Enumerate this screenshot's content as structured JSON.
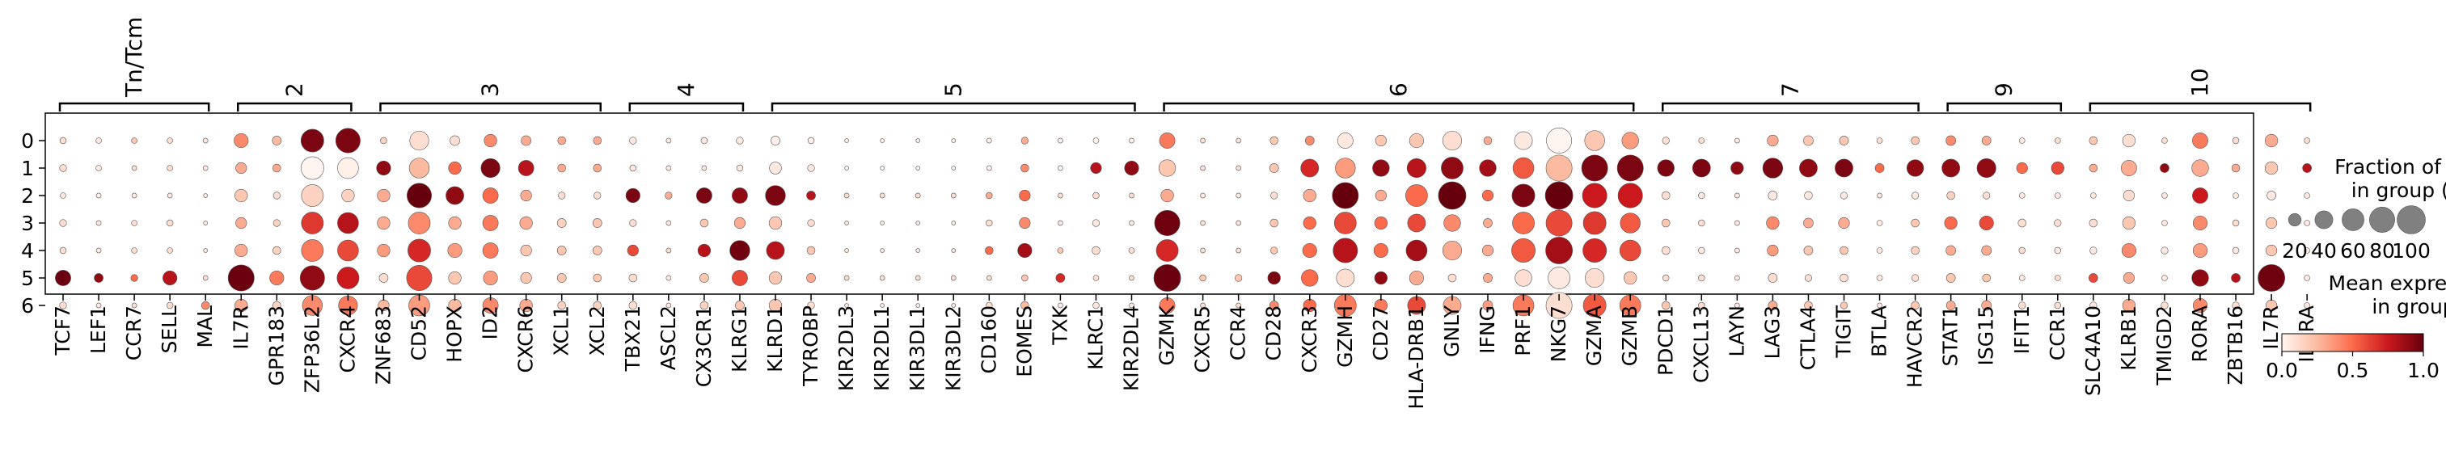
{
  "chart_data": {
    "type": "dotplot",
    "groups": [
      "0",
      "1",
      "2",
      "3",
      "4",
      "5",
      "6"
    ],
    "genes": [
      "TCF7",
      "LEF1",
      "CCR7",
      "SELL",
      "MAL",
      "IL7R",
      "GPR183",
      "ZFP36L2",
      "CXCR4",
      "ZNF683",
      "CD52",
      "HOPX",
      "ID2",
      "CXCR6",
      "XCL1",
      "XCL2",
      "TBX21",
      "ASCL2",
      "CX3CR1",
      "KLRG1",
      "KLRD1",
      "TYROBP",
      "KIR2DL3",
      "KIR2DL1",
      "KIR3DL1",
      "KIR3DL2",
      "CD160",
      "EOMES",
      "TXK",
      "KLRC1",
      "KIR2DL4",
      "GZMK",
      "CXCR5",
      "CCR4",
      "CD28",
      "CXCR3",
      "GZMH",
      "CD27",
      "HLA-DRB1",
      "GNLY",
      "IFNG",
      "PRF1",
      "NKG7",
      "GZMA",
      "GZMB",
      "PDCD1",
      "CXCL13",
      "LAYN",
      "LAG3",
      "CTLA4",
      "TIGIT",
      "BTLA",
      "HAVCR2",
      "STAT1",
      "ISG15",
      "IFIT1",
      "CCR1",
      "SLC4A10",
      "KLRB1",
      "TMIGD2",
      "RORA",
      "ZBTB16",
      "IL7R",
      "IL2RA"
    ],
    "gene_groups": [
      {
        "label": "Tn/Tcm",
        "start": 0,
        "end": 4
      },
      {
        "label": "2",
        "start": 5,
        "end": 8
      },
      {
        "label": "3",
        "start": 9,
        "end": 15
      },
      {
        "label": "4",
        "start": 16,
        "end": 19
      },
      {
        "label": "5",
        "start": 20,
        "end": 30
      },
      {
        "label": "6",
        "start": 31,
        "end": 44
      },
      {
        "label": "7",
        "start": 45,
        "end": 52
      },
      {
        "label": "9",
        "start": 53,
        "end": 56
      },
      {
        "label": "10",
        "start": 57,
        "end": 63
      }
    ],
    "fraction": [
      [
        5,
        4,
        4,
        4,
        3,
        25,
        10,
        65,
        75,
        5,
        45,
        12,
        20,
        12,
        8,
        8,
        6,
        3,
        5,
        6,
        10,
        5,
        2,
        2,
        2,
        2,
        3,
        6,
        3,
        4,
        3,
        30,
        3,
        3,
        8,
        10,
        30,
        15,
        25,
        45,
        8,
        40,
        80,
        50,
        35,
        6,
        4,
        3,
        15,
        12,
        10,
        4,
        8,
        12,
        10,
        4,
        4,
        8,
        20,
        4,
        30,
        5,
        20,
        4
      ],
      [
        6,
        4,
        3,
        4,
        3,
        15,
        8,
        65,
        55,
        25,
        50,
        20,
        45,
        30,
        8,
        8,
        5,
        3,
        3,
        5,
        18,
        6,
        2,
        2,
        2,
        2,
        3,
        8,
        3,
        15,
        25,
        35,
        3,
        3,
        10,
        40,
        50,
        35,
        45,
        60,
        35,
        55,
        85,
        85,
        85,
        35,
        40,
        20,
        50,
        40,
        40,
        10,
        35,
        40,
        45,
        15,
        20,
        8,
        30,
        10,
        35,
        8,
        20,
        10
      ],
      [
        4,
        3,
        3,
        3,
        2,
        20,
        6,
        60,
        20,
        20,
        75,
        40,
        30,
        15,
        6,
        6,
        25,
        6,
        30,
        30,
        50,
        10,
        3,
        3,
        3,
        3,
        5,
        15,
        3,
        5,
        3,
        20,
        3,
        3,
        6,
        20,
        85,
        15,
        60,
        95,
        15,
        65,
        95,
        75,
        75,
        8,
        5,
        3,
        10,
        8,
        6,
        3,
        6,
        8,
        6,
        4,
        4,
        4,
        15,
        4,
        30,
        4,
        10,
        4
      ],
      [
        6,
        3,
        4,
        5,
        2,
        15,
        6,
        60,
        55,
        20,
        60,
        20,
        30,
        20,
        10,
        10,
        6,
        3,
        8,
        15,
        20,
        6,
        2,
        2,
        2,
        2,
        5,
        15,
        3,
        6,
        3,
        80,
        3,
        3,
        8,
        20,
        60,
        20,
        40,
        35,
        10,
        60,
        85,
        65,
        50,
        8,
        5,
        3,
        20,
        12,
        15,
        4,
        8,
        20,
        25,
        8,
        6,
        8,
        20,
        4,
        25,
        5,
        15,
        4
      ],
      [
        5,
        3,
        4,
        4,
        2,
        20,
        8,
        60,
        55,
        20,
        65,
        25,
        30,
        15,
        10,
        10,
        15,
        3,
        20,
        50,
        40,
        8,
        2,
        2,
        2,
        2,
        8,
        25,
        4,
        8,
        4,
        60,
        3,
        3,
        6,
        25,
        75,
        25,
        55,
        45,
        15,
        70,
        90,
        70,
        55,
        8,
        5,
        3,
        15,
        10,
        8,
        4,
        8,
        12,
        12,
        5,
        5,
        6,
        25,
        6,
        25,
        5,
        15,
        4
      ],
      [
        30,
        10,
        6,
        25,
        3,
        85,
        25,
        75,
        60,
        10,
        80,
        20,
        25,
        15,
        10,
        8,
        8,
        3,
        10,
        30,
        20,
        10,
        3,
        3,
        3,
        3,
        3,
        5,
        10,
        4,
        3,
        90,
        5,
        6,
        20,
        35,
        40,
        20,
        25,
        8,
        10,
        35,
        60,
        45,
        20,
        5,
        5,
        3,
        10,
        6,
        8,
        4,
        6,
        10,
        8,
        4,
        4,
        10,
        15,
        4,
        35,
        10,
        90,
        4
      ],
      [
        6,
        3,
        3,
        5,
        8,
        20,
        8,
        50,
        45,
        15,
        55,
        20,
        30,
        20,
        8,
        8,
        8,
        3,
        8,
        10,
        20,
        6,
        2,
        2,
        2,
        2,
        5,
        8,
        3,
        5,
        3,
        30,
        3,
        3,
        10,
        20,
        60,
        20,
        40,
        40,
        12,
        55,
        85,
        65,
        55,
        8,
        5,
        3,
        10,
        8,
        6,
        3,
        8,
        10,
        12,
        6,
        5,
        6,
        20,
        6,
        25,
        6,
        15,
        4
      ]
    ],
    "expression": [
      [
        0.1,
        0.05,
        0.2,
        0.1,
        0.05,
        0.4,
        0.25,
        0.95,
        0.95,
        0.15,
        0.1,
        0.1,
        0.4,
        0.3,
        0.3,
        0.3,
        0.05,
        0.05,
        0.05,
        0.05,
        0.02,
        0.02,
        0.02,
        0.02,
        0.02,
        0.02,
        0.02,
        0.3,
        0.02,
        0.02,
        0.02,
        0.45,
        0.1,
        0.1,
        0.2,
        0.4,
        0.05,
        0.2,
        0.2,
        0.1,
        0.3,
        0.05,
        0.0,
        0.2,
        0.35,
        0.1,
        0.1,
        0.05,
        0.3,
        0.2,
        0.2,
        0.1,
        0.2,
        0.4,
        0.3,
        0.05,
        0.1,
        0.2,
        0.1,
        0.1,
        0.45,
        0.1,
        0.3,
        0.1
      ],
      [
        0.1,
        0.05,
        0.1,
        0.1,
        0.05,
        0.3,
        0.3,
        0.0,
        0.02,
        0.9,
        0.25,
        0.5,
        0.95,
        0.8,
        0.3,
        0.3,
        0.05,
        0.05,
        0.05,
        0.05,
        0.05,
        0.05,
        0.02,
        0.02,
        0.02,
        0.02,
        0.02,
        0.4,
        0.02,
        0.8,
        0.9,
        0.2,
        0.1,
        0.1,
        0.2,
        0.7,
        0.35,
        0.9,
        0.8,
        0.9,
        0.85,
        0.55,
        0.25,
        0.95,
        0.95,
        0.95,
        0.95,
        0.9,
        0.95,
        0.9,
        0.95,
        0.5,
        0.9,
        0.9,
        0.9,
        0.5,
        0.6,
        0.3,
        0.3,
        0.9,
        0.3,
        0.3,
        0.2,
        0.8
      ],
      [
        0.05,
        0.02,
        0.05,
        0.05,
        0.02,
        0.2,
        0.1,
        0.15,
        0.15,
        0.3,
        1.0,
        0.9,
        0.5,
        0.3,
        0.1,
        0.1,
        0.95,
        0.3,
        0.95,
        0.9,
        0.95,
        0.8,
        0.1,
        0.1,
        0.1,
        0.1,
        0.3,
        0.5,
        0.1,
        0.1,
        0.1,
        0.3,
        0.05,
        0.05,
        0.1,
        0.3,
        1.0,
        0.3,
        0.5,
        1.0,
        0.5,
        0.95,
        1.0,
        0.75,
        0.75,
        0.1,
        0.05,
        0.05,
        0.05,
        0.05,
        0.05,
        0.05,
        0.05,
        0.15,
        0.1,
        0.05,
        0.05,
        0.05,
        0.1,
        0.05,
        0.75,
        0.05,
        0.05,
        0.05
      ],
      [
        0.1,
        0.05,
        0.1,
        0.1,
        0.05,
        0.3,
        0.15,
        0.65,
        0.8,
        0.3,
        0.4,
        0.3,
        0.45,
        0.3,
        0.15,
        0.2,
        0.1,
        0.05,
        0.2,
        0.3,
        0.2,
        0.1,
        0.05,
        0.05,
        0.05,
        0.05,
        0.1,
        0.4,
        0.05,
        0.05,
        0.05,
        0.98,
        0.1,
        0.1,
        0.2,
        0.5,
        0.6,
        0.5,
        0.6,
        0.4,
        0.3,
        0.5,
        0.6,
        0.65,
        0.55,
        0.2,
        0.1,
        0.05,
        0.4,
        0.3,
        0.3,
        0.05,
        0.2,
        0.5,
        0.6,
        0.1,
        0.1,
        0.1,
        0.2,
        0.05,
        0.4,
        0.1,
        0.2,
        0.05
      ],
      [
        0.1,
        0.05,
        0.1,
        0.1,
        0.05,
        0.3,
        0.15,
        0.45,
        0.6,
        0.35,
        0.7,
        0.35,
        0.45,
        0.2,
        0.2,
        0.2,
        0.6,
        0.1,
        0.8,
        0.98,
        0.8,
        0.2,
        0.05,
        0.05,
        0.05,
        0.05,
        0.5,
        0.85,
        0.2,
        0.1,
        0.1,
        0.7,
        0.1,
        0.1,
        0.2,
        0.5,
        0.8,
        0.5,
        0.85,
        0.3,
        0.3,
        0.55,
        0.85,
        0.7,
        0.6,
        0.1,
        0.05,
        0.05,
        0.35,
        0.2,
        0.2,
        0.05,
        0.15,
        0.3,
        0.3,
        0.1,
        0.05,
        0.05,
        0.4,
        0.05,
        0.35,
        0.05,
        0.2,
        0.05
      ],
      [
        0.99,
        0.9,
        0.5,
        0.8,
        0.1,
        0.99,
        0.45,
        0.9,
        0.75,
        0.1,
        0.6,
        0.2,
        0.35,
        0.2,
        0.2,
        0.2,
        0.1,
        0.05,
        0.2,
        0.6,
        0.2,
        0.3,
        0.1,
        0.1,
        0.1,
        0.1,
        0.1,
        0.2,
        0.7,
        0.1,
        0.1,
        0.99,
        0.2,
        0.2,
        0.95,
        0.5,
        0.1,
        0.9,
        0.3,
        0.1,
        0.3,
        0.1,
        0.05,
        0.1,
        0.2,
        0.1,
        0.1,
        0.05,
        0.1,
        0.1,
        0.1,
        0.05,
        0.1,
        0.2,
        0.2,
        0.05,
        0.1,
        0.6,
        0.3,
        0.05,
        0.9,
        0.8,
        0.98,
        0.05
      ],
      [
        0.1,
        0.05,
        0.1,
        0.1,
        0.4,
        0.3,
        0.15,
        0.4,
        0.45,
        0.25,
        0.35,
        0.25,
        0.4,
        0.3,
        0.15,
        0.15,
        0.1,
        0.05,
        0.15,
        0.2,
        0.2,
        0.1,
        0.05,
        0.05,
        0.05,
        0.05,
        0.1,
        0.25,
        0.05,
        0.05,
        0.05,
        0.45,
        0.1,
        0.1,
        0.4,
        0.5,
        0.45,
        0.45,
        0.6,
        0.3,
        0.35,
        0.45,
        0.1,
        0.55,
        0.45,
        0.2,
        0.1,
        0.05,
        0.3,
        0.2,
        0.2,
        0.05,
        0.2,
        0.3,
        0.3,
        0.1,
        0.1,
        0.05,
        0.3,
        0.1,
        0.4,
        0.1,
        0.2,
        0.05
      ]
    ],
    "legend": {
      "size_title_line1": "Fraction of cells",
      "size_title_line2": "in group (%)",
      "size_values": [
        20,
        40,
        60,
        80,
        100
      ],
      "size_tick_labels": [
        "20",
        "40",
        "60",
        "80",
        "100"
      ],
      "color_title_line1": "Mean expression",
      "color_title_line2": "in group",
      "color_ticks": [
        0.0,
        0.5,
        1.0
      ],
      "color_tick_labels": [
        "0.0",
        "0.5",
        "1.0"
      ]
    },
    "colormap": [
      "#fff5f0",
      "#fcbba1",
      "#fb6a4a",
      "#cb181d",
      "#67000d"
    ]
  }
}
